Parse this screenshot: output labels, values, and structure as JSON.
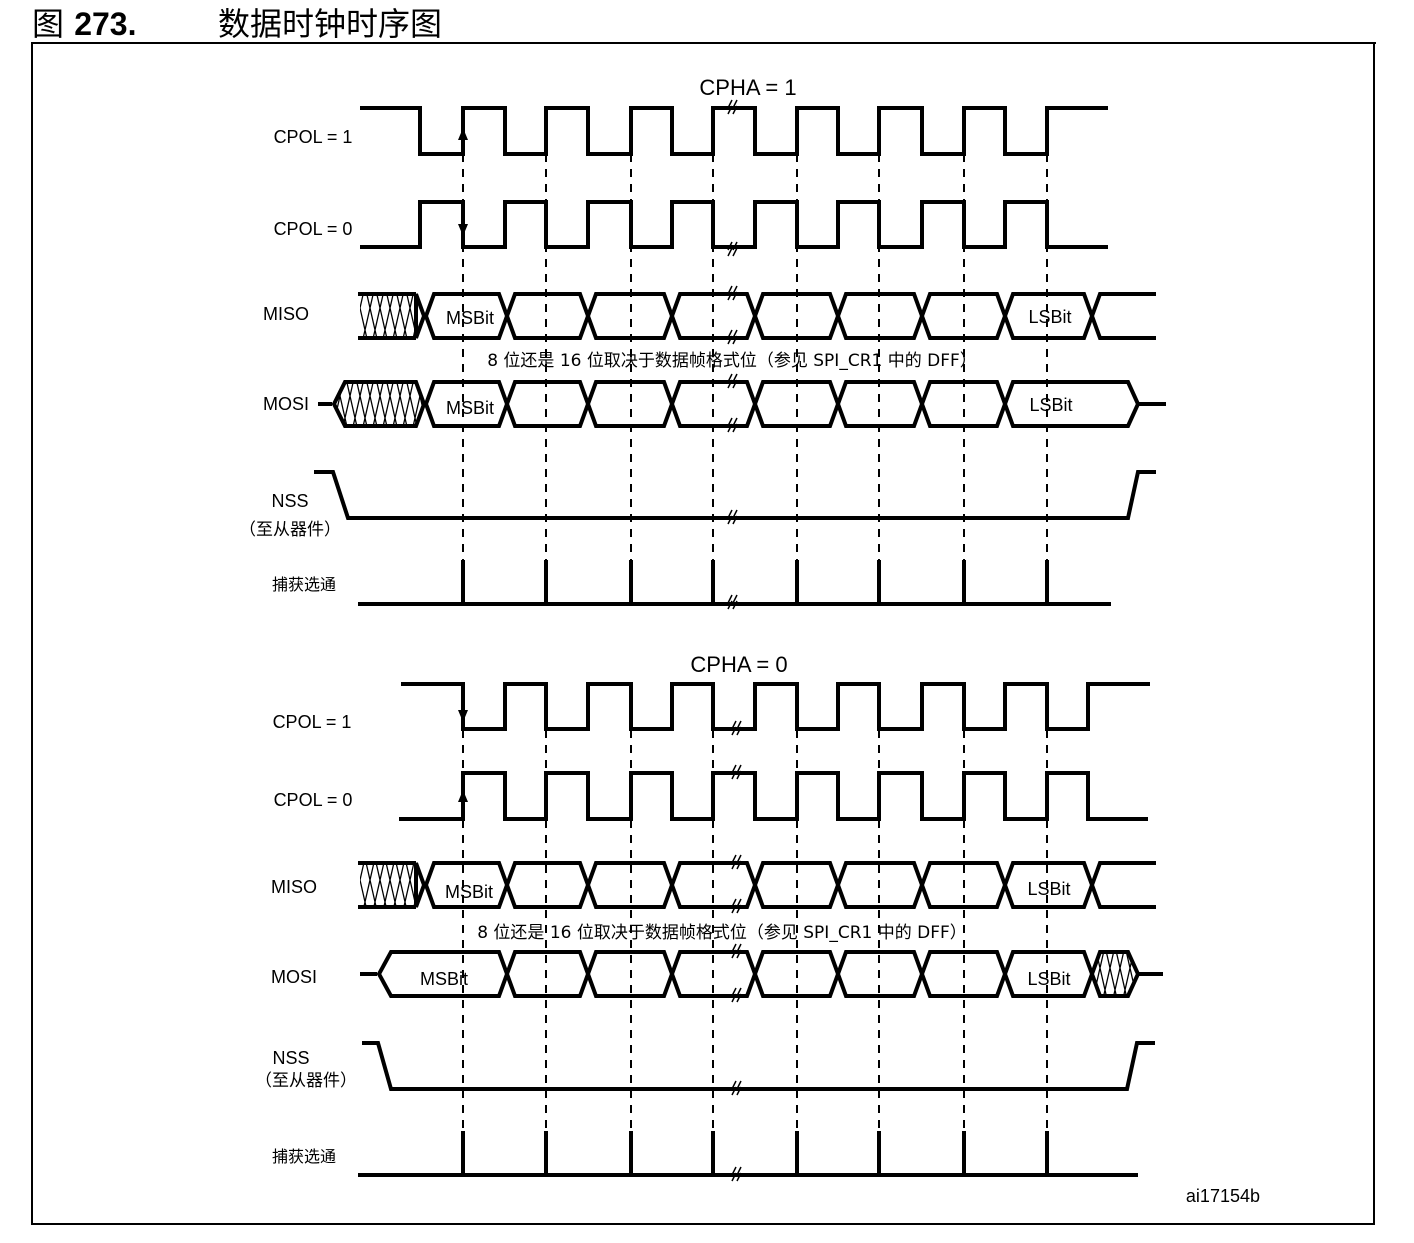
{
  "figure": {
    "label": "图",
    "number": "273.",
    "title": "数据时钟时序图",
    "id_code": "ai17154b"
  },
  "panels": [
    {
      "heading": "CPHA = 1",
      "signals": {
        "cpol1": "CPOL = 1",
        "cpol0": "CPOL = 0",
        "miso": "MISO",
        "mosi": "MOSI",
        "nss": "NSS",
        "nss_note": "（至从器件）",
        "strobe": "捕获选通"
      },
      "msb": "MSBit",
      "lsb": "LSBit",
      "note": "8 位还是 16 位取决于数据帧格式位（参见 SPI_CR1 中的 DFF）"
    },
    {
      "heading": "CPHA = 0",
      "signals": {
        "cpol1": "CPOL = 1",
        "cpol0": "CPOL = 0",
        "miso": "MISO",
        "mosi": "MOSI",
        "nss": "NSS",
        "nss_note": "（至从器件）",
        "strobe": "捕获选通"
      },
      "msb": "MSBit",
      "lsb": "LSBit",
      "note": "8 位还是 16 位取决于数据帧格式位（参见 SPI_CR1 中的 DFF）"
    }
  ]
}
